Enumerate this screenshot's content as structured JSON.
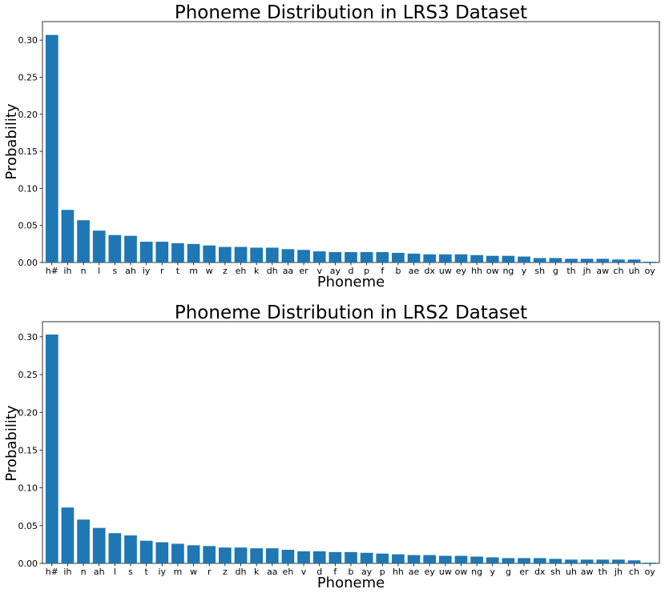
{
  "colors": {
    "bar": "#1f77b4"
  },
  "chart_data": [
    {
      "type": "bar",
      "title": "Phoneme Distribution in LRS3 Dataset",
      "xlabel": "Phoneme",
      "ylabel": "Probability",
      "ylim": [
        0,
        0.325
      ],
      "yticks": [
        "0.00",
        "0.05",
        "0.10",
        "0.15",
        "0.20",
        "0.25",
        "0.30"
      ],
      "grid": false,
      "categories": [
        "h#",
        "ih",
        "n",
        "l",
        "s",
        "ah",
        "iy",
        "r",
        "t",
        "m",
        "w",
        "z",
        "eh",
        "k",
        "dh",
        "aa",
        "er",
        "v",
        "ay",
        "d",
        "p",
        "f",
        "b",
        "ae",
        "dx",
        "uw",
        "ey",
        "hh",
        "ow",
        "ng",
        "y",
        "sh",
        "g",
        "th",
        "jh",
        "aw",
        "ch",
        "uh",
        "oy"
      ],
      "values": [
        0.307,
        0.071,
        0.057,
        0.043,
        0.037,
        0.036,
        0.028,
        0.028,
        0.026,
        0.025,
        0.023,
        0.021,
        0.021,
        0.02,
        0.02,
        0.018,
        0.017,
        0.015,
        0.014,
        0.014,
        0.014,
        0.014,
        0.013,
        0.012,
        0.011,
        0.011,
        0.011,
        0.01,
        0.009,
        0.009,
        0.008,
        0.006,
        0.006,
        0.005,
        0.005,
        0.005,
        0.004,
        0.004,
        0.001
      ]
    },
    {
      "type": "bar",
      "title": "Phoneme Distribution in LRS2 Dataset",
      "xlabel": "Phoneme",
      "ylabel": "Probability",
      "ylim": [
        0,
        0.32
      ],
      "yticks": [
        "0.00",
        "0.05",
        "0.10",
        "0.15",
        "0.20",
        "0.25",
        "0.30"
      ],
      "grid": false,
      "categories": [
        "h#",
        "ih",
        "n",
        "ah",
        "l",
        "s",
        "t",
        "iy",
        "m",
        "w",
        "r",
        "z",
        "dh",
        "k",
        "aa",
        "eh",
        "v",
        "d",
        "f",
        "b",
        "ay",
        "p",
        "hh",
        "ae",
        "ey",
        "uw",
        "ow",
        "ng",
        "y",
        "g",
        "er",
        "dx",
        "sh",
        "uh",
        "aw",
        "th",
        "jh",
        "ch",
        "oy"
      ],
      "values": [
        0.303,
        0.074,
        0.058,
        0.047,
        0.04,
        0.037,
        0.03,
        0.028,
        0.026,
        0.024,
        0.023,
        0.021,
        0.021,
        0.02,
        0.02,
        0.018,
        0.016,
        0.016,
        0.015,
        0.015,
        0.014,
        0.013,
        0.012,
        0.011,
        0.011,
        0.01,
        0.01,
        0.009,
        0.008,
        0.007,
        0.007,
        0.007,
        0.006,
        0.005,
        0.005,
        0.005,
        0.005,
        0.004,
        0.001
      ]
    }
  ]
}
